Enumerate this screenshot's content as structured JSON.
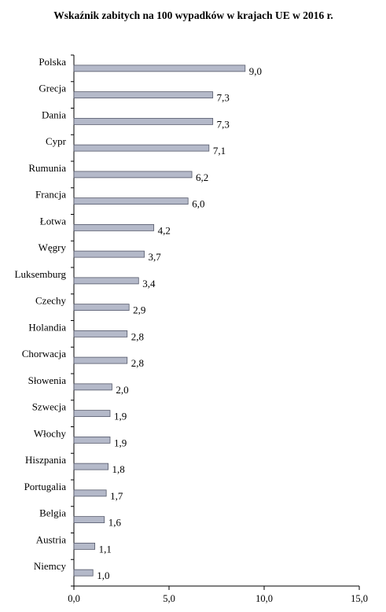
{
  "chart_data": {
    "type": "bar",
    "orientation": "horizontal",
    "title": "Wskaźnik zabitych na 100 wypadków w krajach UE w 2016 r.",
    "categories": [
      "Polska",
      "Grecja",
      "Dania",
      "Cypr",
      "Rumunia",
      "Francja",
      "Łotwa",
      "Węgry",
      "Luksemburg",
      "Czechy",
      "Holandia",
      "Chorwacja",
      "Słowenia",
      "Szwecja",
      "Włochy",
      "Hiszpania",
      "Portugalia",
      "Belgia",
      "Austria",
      "Niemcy"
    ],
    "values": [
      9.0,
      7.3,
      7.3,
      7.1,
      6.2,
      6.0,
      4.2,
      3.7,
      3.4,
      2.9,
      2.8,
      2.8,
      2.0,
      1.9,
      1.9,
      1.8,
      1.7,
      1.6,
      1.1,
      1.0
    ],
    "value_labels": [
      "9,0",
      "7,3",
      "7,3",
      "7,1",
      "6,2",
      "6,0",
      "4,2",
      "3,7",
      "3,4",
      "2,9",
      "2,8",
      "2,8",
      "2,0",
      "1,9",
      "1,9",
      "1,8",
      "1,7",
      "1,6",
      "1,1",
      "1,0"
    ],
    "xlim": [
      0,
      15
    ],
    "x_ticks": [
      0,
      5,
      10,
      15
    ],
    "x_tick_labels": [
      "0,0",
      "5,0",
      "10,0",
      "15,0"
    ],
    "xlabel": "",
    "ylabel": "",
    "grid": false,
    "legend": "none",
    "colors": {
      "bar_fill": "#b4b9c9",
      "bar_stroke": "#55596a"
    }
  }
}
